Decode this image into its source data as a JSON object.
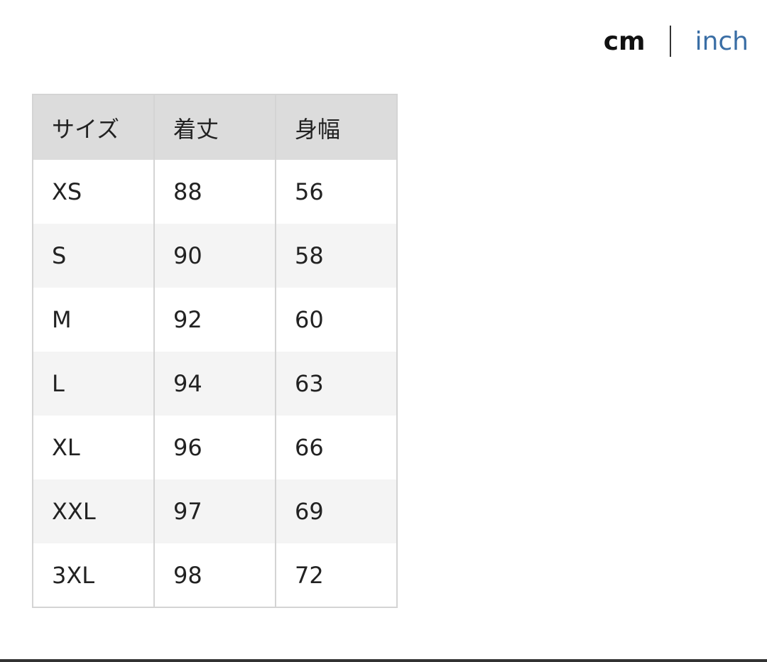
{
  "units": {
    "active": "cm",
    "separator": "|",
    "other": "inch"
  },
  "table": {
    "headers": [
      "サイズ",
      "着丈",
      "身幅"
    ],
    "rows": [
      [
        "XS",
        "88",
        "56"
      ],
      [
        "S",
        "90",
        "58"
      ],
      [
        "M",
        "92",
        "60"
      ],
      [
        "L",
        "94",
        "63"
      ],
      [
        "XL",
        "96",
        "66"
      ],
      [
        "XXL",
        "97",
        "69"
      ],
      [
        "3XL",
        "98",
        "72"
      ]
    ]
  }
}
